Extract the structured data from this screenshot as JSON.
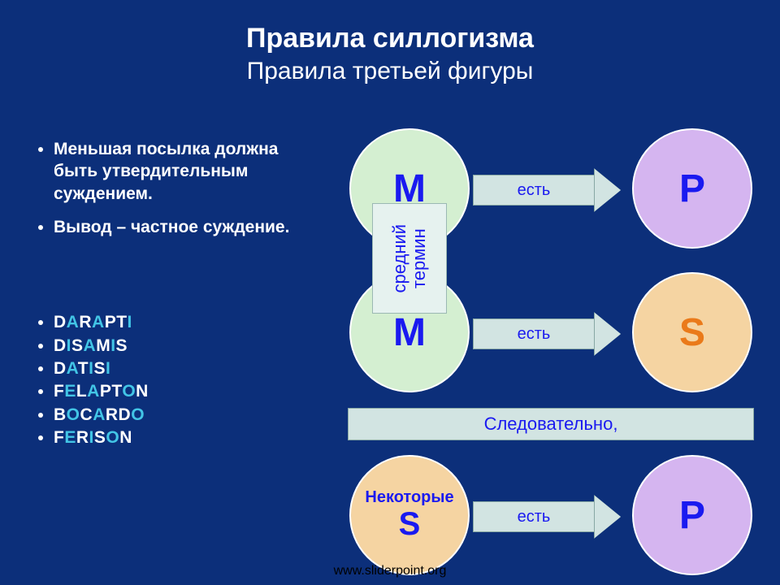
{
  "title": {
    "main": "Правила силлогизма",
    "sub": "Правила третьей фигуры"
  },
  "rules": [
    "Меньшая посылка должна быть утвердительным суждением.",
    "Вывод – частное суждение."
  ],
  "moods": [
    {
      "segments": [
        {
          "t": "D",
          "c": "#ffffff"
        },
        {
          "t": "A",
          "c": "#42c5e6"
        },
        {
          "t": "R",
          "c": "#ffffff"
        },
        {
          "t": "A",
          "c": "#42c5e6"
        },
        {
          "t": "PT",
          "c": "#ffffff"
        },
        {
          "t": "I",
          "c": "#42c5e6"
        }
      ]
    },
    {
      "segments": [
        {
          "t": "D",
          "c": "#ffffff"
        },
        {
          "t": "I",
          "c": "#42c5e6"
        },
        {
          "t": "S",
          "c": "#ffffff"
        },
        {
          "t": "A",
          "c": "#42c5e6"
        },
        {
          "t": "M",
          "c": "#ffffff"
        },
        {
          "t": "I",
          "c": "#42c5e6"
        },
        {
          "t": "S",
          "c": "#ffffff"
        }
      ]
    },
    {
      "segments": [
        {
          "t": "D",
          "c": "#ffffff"
        },
        {
          "t": "A",
          "c": "#42c5e6"
        },
        {
          "t": "T",
          "c": "#ffffff"
        },
        {
          "t": "I",
          "c": "#42c5e6"
        },
        {
          "t": "S",
          "c": "#ffffff"
        },
        {
          "t": "I",
          "c": "#42c5e6"
        }
      ]
    },
    {
      "segments": [
        {
          "t": "F",
          "c": "#ffffff"
        },
        {
          "t": "E",
          "c": "#42c5e6"
        },
        {
          "t": "L",
          "c": "#ffffff"
        },
        {
          "t": "A",
          "c": "#42c5e6"
        },
        {
          "t": "PT",
          "c": "#ffffff"
        },
        {
          "t": "O",
          "c": "#42c5e6"
        },
        {
          "t": "N",
          "c": "#ffffff"
        }
      ]
    },
    {
      "segments": [
        {
          "t": "B",
          "c": "#ffffff"
        },
        {
          "t": "O",
          "c": "#42c5e6"
        },
        {
          "t": "C",
          "c": "#ffffff"
        },
        {
          "t": "A",
          "c": "#42c5e6"
        },
        {
          "t": "RD",
          "c": "#ffffff"
        },
        {
          "t": "O",
          "c": "#42c5e6"
        }
      ]
    },
    {
      "segments": [
        {
          "t": "F",
          "c": "#ffffff"
        },
        {
          "t": "E",
          "c": "#42c5e6"
        },
        {
          "t": "R",
          "c": "#ffffff"
        },
        {
          "t": "I",
          "c": "#42c5e6"
        },
        {
          "t": "S",
          "c": "#ffffff"
        },
        {
          "t": "O",
          "c": "#42c5e6"
        },
        {
          "t": "N",
          "c": "#ffffff"
        }
      ]
    }
  ],
  "diagram": {
    "circles": {
      "m1": {
        "letter": "M",
        "color_class": "c-green",
        "text_color": "#1a1af0"
      },
      "p1": {
        "letter": "P",
        "color_class": "c-purple",
        "text_color": "#1a1af0"
      },
      "m2": {
        "letter": "M",
        "color_class": "c-green",
        "text_color": "#1a1af0"
      },
      "s1": {
        "letter": "S",
        "color_class": "c-orange",
        "text_color": "#ea7a1a"
      },
      "p2": {
        "letter": "P",
        "color_class": "c-purple",
        "text_color": "#1a1af0"
      }
    },
    "s2": {
      "small": "Некоторые",
      "big": "S"
    },
    "arrows": {
      "a1": "есть",
      "a2": "есть",
      "a3": "есть"
    },
    "middle_term": "средний\nтермин",
    "therefore": "Следовательно,"
  },
  "colors": {
    "bg": "#0c2f7a",
    "green": "#d4efd1",
    "purple": "#d5b5f0",
    "orange": "#f5d4a2",
    "arrow_fill": "#d2e4e2",
    "arrow_border": "#88a8a4",
    "blue_text": "#1a1af0",
    "orange_text": "#ea7a1a",
    "highlight": "#42c5e6"
  },
  "footer": "www.sliderpoint.org"
}
